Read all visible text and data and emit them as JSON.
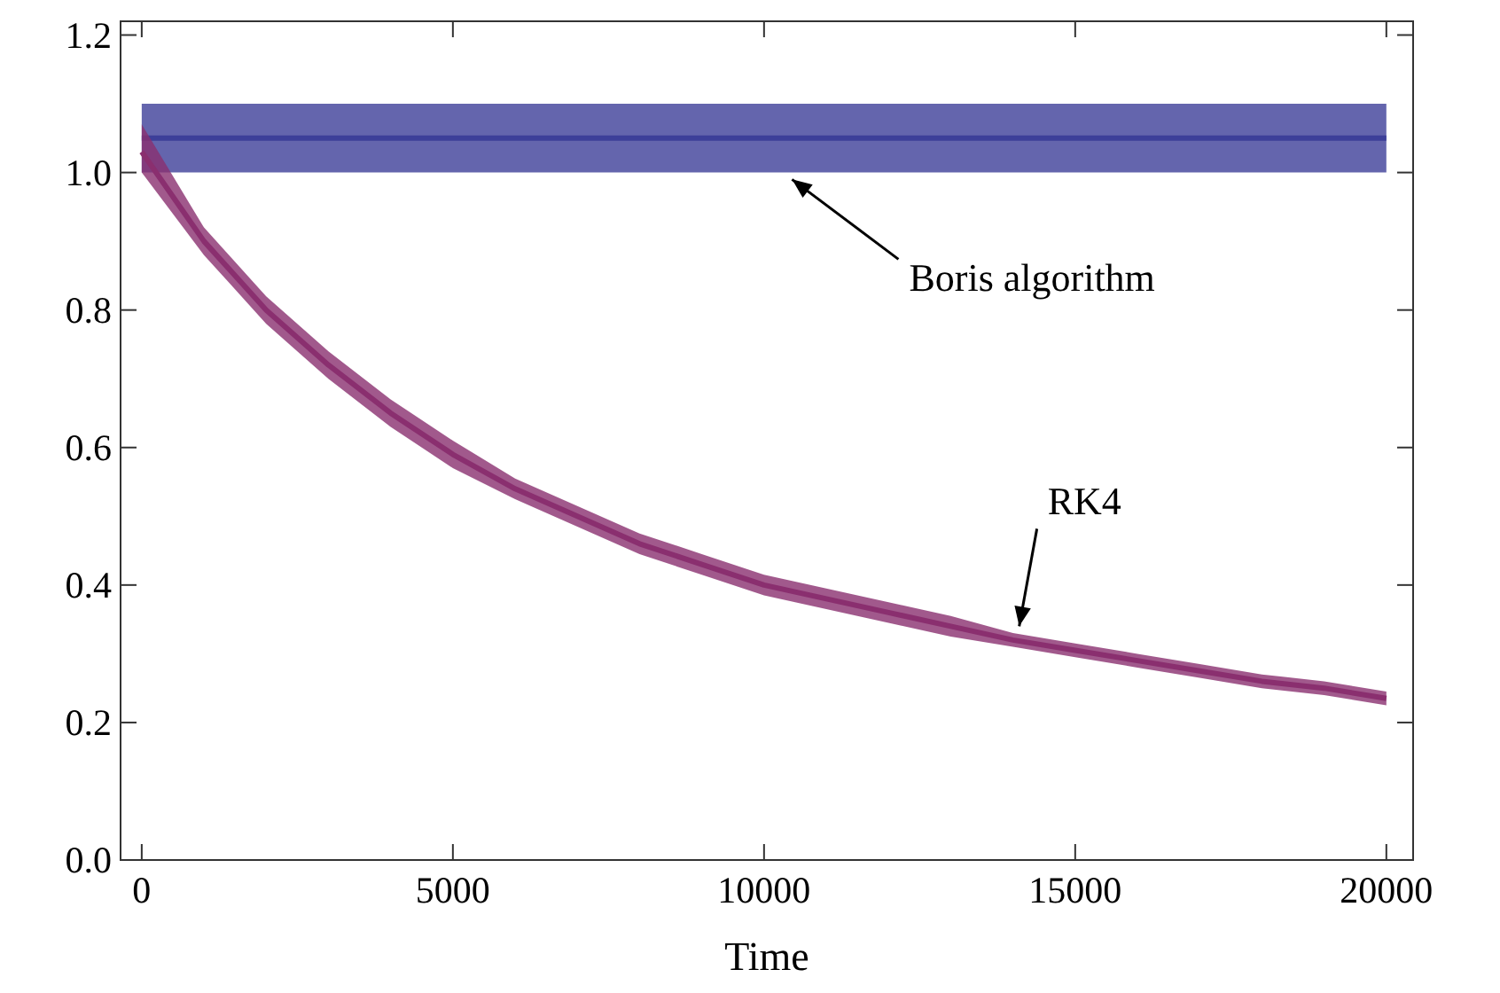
{
  "chart_data": {
    "type": "line",
    "xlabel": "Time",
    "xlim": [
      -340,
      20430
    ],
    "ylim": [
      0,
      1.22
    ],
    "xticks": [
      0,
      5000,
      10000,
      15000,
      20000
    ],
    "yticks": [
      {
        "value": 0,
        "label": "0.0"
      },
      {
        "value": 0.2,
        "label": "0.2"
      },
      {
        "value": 0.4,
        "label": "0.4"
      },
      {
        "value": 0.6,
        "label": "0.6"
      },
      {
        "value": 0.8,
        "label": "0.8"
      },
      {
        "value": 1,
        "label": "1.0"
      },
      {
        "value": 1.2,
        "label": "1.2"
      }
    ],
    "grid": false,
    "series": [
      {
        "color": "#3d3f99",
        "x": [
          0,
          5000,
          10000,
          15000,
          20000
        ],
        "values": [
          1.05,
          1.05,
          1.05,
          1.05,
          1.05
        ],
        "lower": [
          1.0,
          1.0,
          1.0,
          1.0,
          1.0
        ],
        "upper": [
          1.1,
          1.1,
          1.1,
          1.1,
          1.1
        ]
      },
      {
        "color": "#8a2f6f",
        "x": [
          0,
          1000,
          2000,
          3000,
          4000,
          5000,
          6000,
          7000,
          8000,
          9000,
          10000,
          11000,
          12000,
          13000,
          14000,
          15000,
          16000,
          17000,
          18000,
          19000,
          20000
        ],
        "values": [
          1.03,
          0.9,
          0.8,
          0.72,
          0.65,
          0.59,
          0.54,
          0.5,
          0.46,
          0.43,
          0.4,
          0.38,
          0.36,
          0.34,
          0.32,
          0.305,
          0.29,
          0.275,
          0.26,
          0.25,
          0.235
        ],
        "lower": [
          1.0,
          0.88,
          0.78,
          0.7,
          0.63,
          0.57,
          0.525,
          0.485,
          0.445,
          0.415,
          0.385,
          0.365,
          0.345,
          0.325,
          0.31,
          0.295,
          0.28,
          0.265,
          0.25,
          0.24,
          0.225
        ],
        "upper": [
          1.07,
          0.92,
          0.82,
          0.74,
          0.67,
          0.61,
          0.555,
          0.515,
          0.475,
          0.445,
          0.415,
          0.395,
          0.375,
          0.355,
          0.33,
          0.315,
          0.3,
          0.285,
          0.27,
          0.26,
          0.245
        ]
      }
    ],
    "annotations": [
      {
        "text": "Boris algorithm",
        "x": 10450,
        "y": 0.99
      },
      {
        "text": "RK4",
        "x": 14100,
        "y": 0.34
      }
    ]
  }
}
